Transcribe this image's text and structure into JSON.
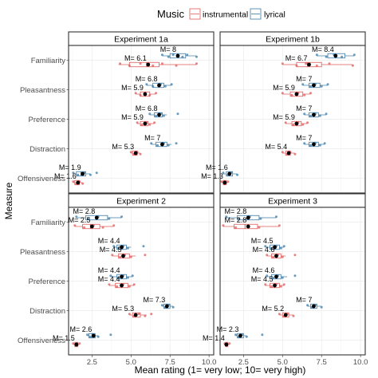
{
  "legend": {
    "title": "Music",
    "placement": "top",
    "items": [
      {
        "label": "instrumental",
        "color": "#E05A5A"
      },
      {
        "label": "lyrical",
        "color": "#3A7BA8"
      }
    ]
  },
  "xlabel": "Mean rating (1= very low; 10= very high)",
  "ylabel": "Measure",
  "chart_data": {
    "type": "boxplot",
    "measures": [
      "Familiarity",
      "Pleasantness",
      "Preference",
      "Distraction",
      "Offensiveness"
    ],
    "series": [
      "instrumental",
      "lyrical"
    ],
    "xticks": [
      2.5,
      5.0,
      7.5,
      10.0
    ],
    "xlim": [
      1,
      10.3
    ],
    "grid": true,
    "panels": [
      {
        "title": "Experiment 1a",
        "show_ylabels": true,
        "rows": [
          {
            "measure": "Familiarity",
            "instrumental": {
              "label": "M= 6.1",
              "mean": 6.1,
              "min": 4.2,
              "q1": 4.9,
              "median": 6.0,
              "q3": 6.8,
              "max": 9.2,
              "points": [
                4.3,
                4.9,
                5.6,
                6.4,
                7.0,
                7.9,
                9.2
              ]
            },
            "lyrical": {
              "label": "M= 8",
              "mean": 8.0,
              "min": 7.0,
              "q1": 7.5,
              "median": 8.0,
              "q3": 8.5,
              "max": 9.2,
              "points": [
                7.0,
                7.4,
                7.7,
                8.3,
                8.6,
                9.2
              ]
            }
          },
          {
            "measure": "Pleasantness",
            "instrumental": {
              "label": "M= 5.9",
              "mean": 5.9,
              "min": 5.3,
              "q1": 5.6,
              "median": 5.9,
              "q3": 6.2,
              "max": 6.6,
              "points": [
                5.3,
                5.6,
                5.9,
                6.2,
                6.6
              ]
            },
            "lyrical": {
              "label": "M= 6.8",
              "mean": 6.8,
              "min": 6.0,
              "q1": 6.4,
              "median": 6.8,
              "q3": 7.1,
              "max": 7.6,
              "points": [
                6.0,
                6.4,
                6.9,
                7.2,
                7.6
              ]
            }
          },
          {
            "measure": "Preference",
            "instrumental": {
              "label": "M= 5.9",
              "mean": 5.9,
              "min": 5.4,
              "q1": 5.6,
              "median": 5.9,
              "q3": 6.1,
              "max": 6.5,
              "points": [
                5.4,
                5.7,
                6.0,
                6.2,
                6.5
              ]
            },
            "lyrical": {
              "label": "M= 6.8",
              "mean": 6.8,
              "min": 6.2,
              "q1": 6.5,
              "median": 6.8,
              "q3": 7.0,
              "max": 7.3,
              "points": [
                6.2,
                6.6,
                6.9,
                7.1,
                8.0
              ]
            }
          },
          {
            "measure": "Distraction",
            "instrumental": {
              "label": "M= 5.3",
              "mean": 5.3,
              "min": 5.0,
              "q1": 5.1,
              "median": 5.3,
              "q3": 5.4,
              "max": 5.6,
              "points": [
                5.0,
                5.2,
                5.4,
                5.6
              ]
            },
            "lyrical": {
              "label": "M= 7",
              "mean": 7.0,
              "min": 6.3,
              "q1": 6.6,
              "median": 7.0,
              "q3": 7.3,
              "max": 7.6,
              "points": [
                6.3,
                6.7,
                7.1,
                7.4,
                7.9
              ]
            }
          },
          {
            "measure": "Offensiveness",
            "instrumental": {
              "label": "M= 1.6",
              "mean": 1.6,
              "min": 1.3,
              "q1": 1.4,
              "median": 1.6,
              "q3": 1.7,
              "max": 1.9,
              "points": [
                1.3,
                1.5,
                1.7,
                1.9
              ]
            },
            "lyrical": {
              "label": "M= 1.9",
              "mean": 1.9,
              "min": 1.3,
              "q1": 1.5,
              "median": 1.8,
              "q3": 2.1,
              "max": 2.4,
              "points": [
                1.3,
                1.6,
                2.0,
                2.4,
                2.8
              ]
            }
          }
        ]
      },
      {
        "title": "Experiment 1b",
        "show_ylabels": false,
        "rows": [
          {
            "measure": "Familiarity",
            "instrumental": {
              "label": "M= 6.7",
              "mean": 6.7,
              "min": 5.0,
              "q1": 5.9,
              "median": 6.6,
              "q3": 7.5,
              "max": 9.5,
              "points": [
                5.0,
                5.9,
                6.5,
                7.2,
                8.0,
                9.5
              ]
            },
            "lyrical": {
              "label": "M= 8.4",
              "mean": 8.4,
              "min": 7.2,
              "q1": 7.9,
              "median": 8.4,
              "q3": 9.0,
              "max": 9.6,
              "points": [
                7.2,
                7.8,
                8.3,
                8.8,
                9.6
              ]
            }
          },
          {
            "measure": "Pleasantness",
            "instrumental": {
              "label": "M= 5.9",
              "mean": 5.9,
              "min": 5.0,
              "q1": 5.5,
              "median": 5.9,
              "q3": 6.3,
              "max": 6.8,
              "points": [
                5.0,
                5.6,
                6.0,
                6.4,
                6.8
              ]
            },
            "lyrical": {
              "label": "M= 7",
              "mean": 7.0,
              "min": 6.3,
              "q1": 6.7,
              "median": 7.0,
              "q3": 7.4,
              "max": 7.9,
              "points": [
                6.3,
                6.8,
                7.1,
                7.5,
                7.9
              ]
            }
          },
          {
            "measure": "Preference",
            "instrumental": {
              "label": "M= 5.9",
              "mean": 5.9,
              "min": 5.2,
              "q1": 5.6,
              "median": 5.9,
              "q3": 6.2,
              "max": 6.6,
              "points": [
                5.2,
                5.7,
                6.0,
                6.3,
                6.6
              ]
            },
            "lyrical": {
              "label": "M= 7",
              "mean": 7.0,
              "min": 6.4,
              "q1": 6.7,
              "median": 7.0,
              "q3": 7.3,
              "max": 7.8,
              "points": [
                6.4,
                6.8,
                7.1,
                7.4,
                7.8
              ]
            }
          },
          {
            "measure": "Distraction",
            "instrumental": {
              "label": "M= 5.4",
              "mean": 5.4,
              "min": 5.0,
              "q1": 5.2,
              "median": 5.4,
              "q3": 5.5,
              "max": 5.8,
              "points": [
                5.0,
                5.3,
                5.5,
                5.8
              ]
            },
            "lyrical": {
              "label": "M= 7",
              "mean": 7.0,
              "min": 6.4,
              "q1": 6.7,
              "median": 7.0,
              "q3": 7.3,
              "max": 7.7,
              "points": [
                6.4,
                6.8,
                7.1,
                7.4,
                7.7
              ]
            }
          },
          {
            "measure": "Offensiveness",
            "instrumental": {
              "label": "M= 1.3",
              "mean": 1.3,
              "min": 1.1,
              "q1": 1.2,
              "median": 1.3,
              "q3": 1.4,
              "max": 1.5,
              "points": [
                1.1,
                1.3,
                1.5
              ]
            },
            "lyrical": {
              "label": "M= 1.6",
              "mean": 1.6,
              "min": 1.2,
              "q1": 1.4,
              "median": 1.6,
              "q3": 1.8,
              "max": 2.1,
              "points": [
                1.2,
                1.5,
                1.7,
                2.1
              ]
            }
          }
        ]
      },
      {
        "title": "Experiment 2",
        "show_ylabels": true,
        "rows": [
          {
            "measure": "Familiarity",
            "instrumental": {
              "label": "M= 2.5",
              "mean": 2.5,
              "min": 1.4,
              "q1": 1.9,
              "median": 2.4,
              "q3": 3.0,
              "max": 3.9,
              "points": [
                1.4,
                2.0,
                2.6,
                3.2,
                3.9
              ]
            },
            "lyrical": {
              "label": "M= 2.8",
              "mean": 2.8,
              "min": 1.5,
              "q1": 2.1,
              "median": 2.8,
              "q3": 3.5,
              "max": 4.4,
              "points": [
                1.5,
                2.3,
                2.9,
                3.6,
                4.4
              ]
            }
          },
          {
            "measure": "Pleasantness",
            "instrumental": {
              "label": "M= 4.5",
              "mean": 4.5,
              "min": 3.8,
              "q1": 4.2,
              "median": 4.5,
              "q3": 4.9,
              "max": 5.3,
              "points": [
                3.8,
                4.3,
                4.6,
                5.0,
                5.9
              ]
            },
            "lyrical": {
              "label": "M= 4.4",
              "mean": 4.4,
              "min": 3.9,
              "q1": 4.1,
              "median": 4.4,
              "q3": 4.7,
              "max": 5.0,
              "points": [
                3.9,
                4.2,
                4.5,
                4.8,
                5.8
              ]
            }
          },
          {
            "measure": "Preference",
            "instrumental": {
              "label": "M= 4.4",
              "mean": 4.4,
              "min": 3.6,
              "q1": 4.0,
              "median": 4.4,
              "q3": 4.8,
              "max": 5.2,
              "points": [
                3.6,
                4.1,
                4.5,
                4.9,
                5.2
              ]
            },
            "lyrical": {
              "label": "M= 4.4",
              "mean": 4.4,
              "min": 3.7,
              "q1": 4.1,
              "median": 4.4,
              "q3": 4.7,
              "max": 5.1,
              "points": [
                3.7,
                4.2,
                4.5,
                4.8,
                5.1
              ]
            }
          },
          {
            "measure": "Distraction",
            "instrumental": {
              "label": "M= 5.3",
              "mean": 5.3,
              "min": 4.9,
              "q1": 5.1,
              "median": 5.3,
              "q3": 5.6,
              "max": 6.0,
              "points": [
                4.9,
                5.2,
                5.5,
                5.9,
                6.3
              ]
            },
            "lyrical": {
              "label": "M= 7.3",
              "mean": 7.3,
              "min": 7.0,
              "q1": 7.1,
              "median": 7.3,
              "q3": 7.5,
              "max": 7.7,
              "points": [
                7.0,
                7.2,
                7.4,
                7.7
              ]
            }
          },
          {
            "measure": "Offensiveness",
            "instrumental": {
              "label": "M= 1.5",
              "mean": 1.5,
              "min": 1.3,
              "q1": 1.4,
              "median": 1.5,
              "q3": 1.6,
              "max": 1.7,
              "points": [
                1.3,
                1.5,
                1.7
              ]
            },
            "lyrical": {
              "label": "M= 2.6",
              "mean": 2.6,
              "min": 2.2,
              "q1": 2.3,
              "median": 2.5,
              "q3": 2.7,
              "max": 2.9,
              "points": [
                2.2,
                2.4,
                2.6,
                2.9,
                3.7
              ]
            }
          }
        ]
      },
      {
        "title": "Experiment 3",
        "show_ylabels": false,
        "rows": [
          {
            "measure": "Familiarity",
            "instrumental": {
              "label": "M= 2.8",
              "mean": 2.8,
              "min": 1.2,
              "q1": 1.9,
              "median": 2.6,
              "q3": 3.4,
              "max": 4.8,
              "points": [
                1.2,
                2.0,
                2.8,
                3.5,
                4.8
              ]
            },
            "lyrical": {
              "label": "M= 2.8",
              "mean": 2.8,
              "min": 1.4,
              "q1": 2.1,
              "median": 2.8,
              "q3": 3.5,
              "max": 4.6,
              "points": [
                1.4,
                2.2,
                2.9,
                3.6,
                4.6
              ]
            }
          },
          {
            "measure": "Pleasantness",
            "instrumental": {
              "label": "M= 4.6",
              "mean": 4.6,
              "min": 4.0,
              "q1": 4.3,
              "median": 4.6,
              "q3": 4.9,
              "max": 5.2,
              "points": [
                4.0,
                4.4,
                4.7,
                5.0,
                5.8
              ]
            },
            "lyrical": {
              "label": "M= 4.5",
              "mean": 4.5,
              "min": 3.9,
              "q1": 4.2,
              "median": 4.5,
              "q3": 4.8,
              "max": 5.1,
              "points": [
                3.9,
                4.3,
                4.6,
                4.9,
                5.1
              ]
            }
          },
          {
            "measure": "Preference",
            "instrumental": {
              "label": "M= 4.5",
              "mean": 4.5,
              "min": 3.9,
              "q1": 4.2,
              "median": 4.5,
              "q3": 4.8,
              "max": 5.1,
              "points": [
                3.9,
                4.3,
                4.6,
                4.9,
                5.1
              ]
            },
            "lyrical": {
              "label": "M= 4.6",
              "mean": 4.6,
              "min": 4.0,
              "q1": 4.3,
              "median": 4.6,
              "q3": 4.9,
              "max": 5.3,
              "points": [
                4.0,
                4.4,
                4.7,
                5.0,
                5.8
              ]
            }
          },
          {
            "measure": "Distraction",
            "instrumental": {
              "label": "M= 5.2",
              "mean": 5.2,
              "min": 4.8,
              "q1": 5.0,
              "median": 5.2,
              "q3": 5.4,
              "max": 5.7,
              "points": [
                4.8,
                5.1,
                5.3,
                5.7
              ]
            },
            "lyrical": {
              "label": "M= 7",
              "mean": 7.0,
              "min": 6.6,
              "q1": 6.8,
              "median": 7.0,
              "q3": 7.2,
              "max": 7.5,
              "points": [
                6.6,
                6.9,
                7.1,
                7.5
              ]
            }
          },
          {
            "measure": "Offensiveness",
            "instrumental": {
              "label": "M= 1.4",
              "mean": 1.4,
              "min": 1.3,
              "q1": 1.35,
              "median": 1.4,
              "q3": 1.5,
              "max": 1.6,
              "points": [
                1.3,
                1.4,
                1.6
              ]
            },
            "lyrical": {
              "label": "M= 2.3",
              "mean": 2.3,
              "min": 2.0,
              "q1": 2.1,
              "median": 2.3,
              "q3": 2.5,
              "max": 2.7,
              "points": [
                2.0,
                2.2,
                2.4,
                2.7,
                3.7
              ]
            }
          }
        ]
      }
    ]
  }
}
